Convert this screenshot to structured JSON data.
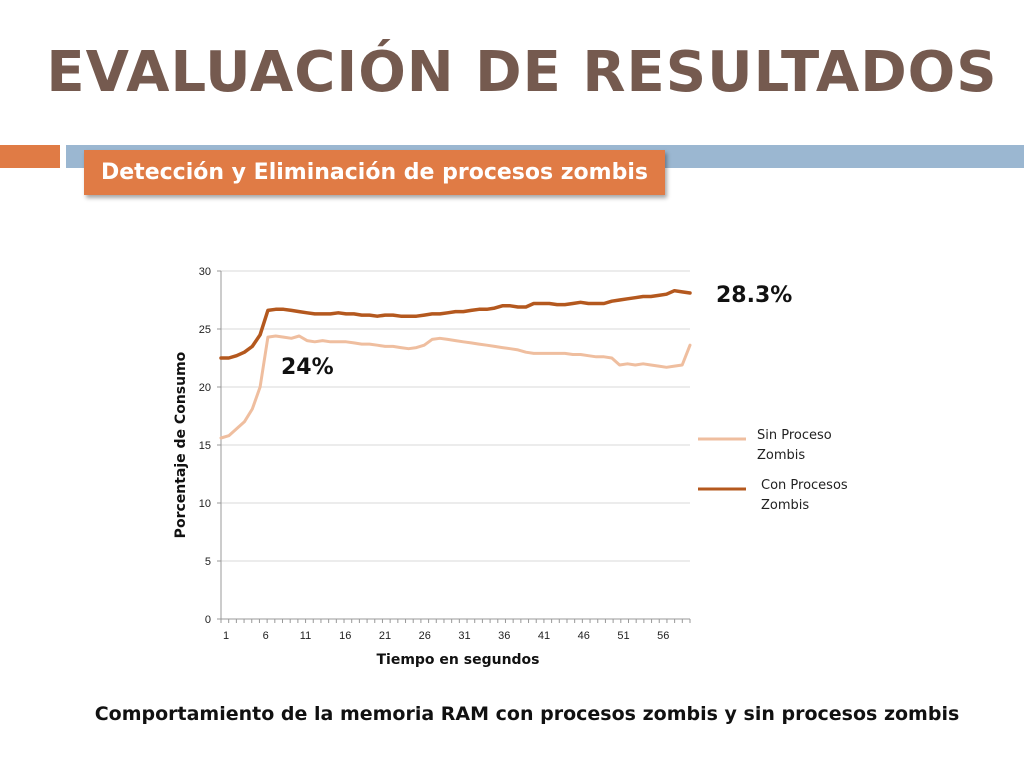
{
  "slide": {
    "title": "EVALUACIÓN DE RESULTADOS",
    "subtitle": "Detección y Eliminación de procesos zombis",
    "caption": "Comportamiento de la memoria RAM con procesos zombis y sin procesos zombis",
    "colors": {
      "title": "#755a4f",
      "accent": "#e07b45",
      "band": "#9bb7d1"
    }
  },
  "chart_data": {
    "type": "line",
    "title": "",
    "xlabel": "Tiempo en segundos",
    "ylabel": "Porcentaje de Consumo",
    "xlim": [
      1,
      60
    ],
    "ylim": [
      0,
      30
    ],
    "x_ticks": [
      1,
      6,
      11,
      16,
      21,
      26,
      31,
      36,
      41,
      46,
      51,
      56
    ],
    "y_ticks": [
      0,
      5,
      10,
      15,
      20,
      25,
      30
    ],
    "grid": "horizontal",
    "legend_position": "right",
    "series": [
      {
        "name": "Sin Proceso Zombis",
        "color": "#efbe9f",
        "values": [
          15.6,
          15.8,
          16.4,
          17.0,
          18.1,
          20.0,
          24.3,
          24.4,
          24.3,
          24.2,
          24.4,
          24.0,
          23.9,
          24.0,
          23.9,
          23.9,
          23.9,
          23.8,
          23.7,
          23.7,
          23.6,
          23.5,
          23.5,
          23.4,
          23.3,
          23.4,
          23.6,
          24.1,
          24.2,
          24.1,
          24.0,
          23.9,
          23.8,
          23.7,
          23.6,
          23.5,
          23.4,
          23.3,
          23.2,
          23.0,
          22.9,
          22.9,
          22.9,
          22.9,
          22.9,
          22.8,
          22.8,
          22.7,
          22.6,
          22.6,
          22.5,
          21.9,
          22.0,
          21.9,
          22.0,
          21.9,
          21.8,
          21.7,
          21.8,
          21.9,
          23.6
        ]
      },
      {
        "name": "Con Procesos Zombis",
        "color": "#b4581e",
        "values": [
          22.5,
          22.5,
          22.7,
          23.0,
          23.5,
          24.5,
          26.6,
          26.7,
          26.7,
          26.6,
          26.5,
          26.4,
          26.3,
          26.3,
          26.3,
          26.4,
          26.3,
          26.3,
          26.2,
          26.2,
          26.1,
          26.2,
          26.2,
          26.1,
          26.1,
          26.1,
          26.2,
          26.3,
          26.3,
          26.4,
          26.5,
          26.5,
          26.6,
          26.7,
          26.7,
          26.8,
          27.0,
          27.0,
          26.9,
          26.9,
          27.2,
          27.2,
          27.2,
          27.1,
          27.1,
          27.2,
          27.3,
          27.2,
          27.2,
          27.2,
          27.4,
          27.5,
          27.6,
          27.7,
          27.8,
          27.8,
          27.9,
          28.0,
          28.3,
          28.2,
          28.1
        ]
      }
    ],
    "annotations": [
      {
        "text": "24%",
        "x": 8,
        "y": 22.2
      },
      {
        "text": "28.3%",
        "x": 62,
        "y": 28.3
      }
    ]
  }
}
